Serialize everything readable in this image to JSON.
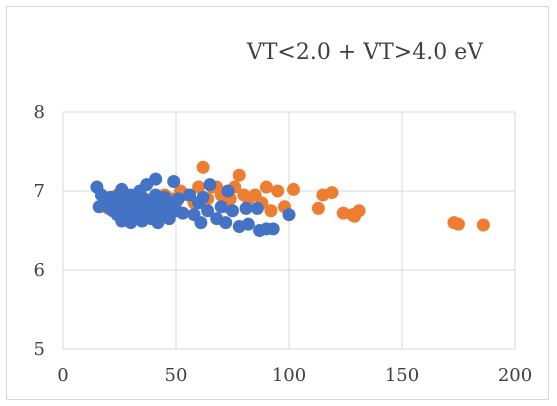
{
  "chart_data": {
    "type": "scatter",
    "title": "VT<2.0 + VT>4.0 eV",
    "xlim": [
      0,
      200
    ],
    "ylim": [
      5,
      8
    ],
    "x_ticks": [
      0,
      50,
      100,
      150,
      200
    ],
    "y_ticks": [
      5,
      6,
      7,
      8
    ],
    "grid": true,
    "legend": "none",
    "series": [
      {
        "color": "#ED7D31",
        "points": [
          [
            18,
            6.85
          ],
          [
            20,
            6.78
          ],
          [
            22,
            6.9
          ],
          [
            24,
            6.95
          ],
          [
            26,
            6.8
          ],
          [
            28,
            6.7
          ],
          [
            30,
            6.88
          ],
          [
            32,
            6.75
          ],
          [
            35,
            6.92
          ],
          [
            38,
            6.85
          ],
          [
            42,
            6.8
          ],
          [
            45,
            6.95
          ],
          [
            48,
            6.9
          ],
          [
            50,
            6.85
          ],
          [
            52,
            7.0
          ],
          [
            55,
            6.95
          ],
          [
            58,
            6.85
          ],
          [
            60,
            7.05
          ],
          [
            62,
            7.3
          ],
          [
            64,
            6.9
          ],
          [
            66,
            7.05
          ],
          [
            68,
            7.05
          ],
          [
            70,
            6.95
          ],
          [
            72,
            6.8
          ],
          [
            74,
            6.9
          ],
          [
            76,
            7.05
          ],
          [
            78,
            7.2
          ],
          [
            80,
            6.95
          ],
          [
            82,
            6.9
          ],
          [
            85,
            6.95
          ],
          [
            88,
            6.85
          ],
          [
            90,
            7.05
          ],
          [
            92,
            6.75
          ],
          [
            95,
            7.0
          ],
          [
            98,
            6.8
          ],
          [
            102,
            7.02
          ],
          [
            113,
            6.78
          ],
          [
            115,
            6.95
          ],
          [
            119,
            6.98
          ],
          [
            124,
            6.72
          ],
          [
            128,
            6.7
          ],
          [
            129,
            6.68
          ],
          [
            131,
            6.75
          ],
          [
            173,
            6.6
          ],
          [
            175,
            6.58
          ],
          [
            186,
            6.57
          ]
        ]
      },
      {
        "color": "#4472C4",
        "points": [
          [
            15,
            7.05
          ],
          [
            16,
            6.8
          ],
          [
            17,
            6.95
          ],
          [
            19,
            6.88
          ],
          [
            20,
            6.8
          ],
          [
            21,
            6.92
          ],
          [
            22,
            6.75
          ],
          [
            23,
            6.85
          ],
          [
            24,
            6.7
          ],
          [
            25,
            6.95
          ],
          [
            26,
            7.02
          ],
          [
            26,
            6.62
          ],
          [
            27,
            6.8
          ],
          [
            28,
            6.7
          ],
          [
            29,
            6.9
          ],
          [
            30,
            6.6
          ],
          [
            30,
            6.95
          ],
          [
            31,
            6.75
          ],
          [
            32,
            6.85
          ],
          [
            33,
            6.68
          ],
          [
            34,
            7.0
          ],
          [
            35,
            6.8
          ],
          [
            35,
            6.62
          ],
          [
            36,
            6.9
          ],
          [
            37,
            7.08
          ],
          [
            38,
            6.72
          ],
          [
            38,
            6.88
          ],
          [
            39,
            6.65
          ],
          [
            40,
            6.78
          ],
          [
            41,
            6.95
          ],
          [
            41,
            7.15
          ],
          [
            42,
            6.6
          ],
          [
            43,
            6.85
          ],
          [
            44,
            6.7
          ],
          [
            45,
            6.92
          ],
          [
            46,
            6.78
          ],
          [
            47,
            6.65
          ],
          [
            48,
            6.85
          ],
          [
            49,
            7.12
          ],
          [
            50,
            6.75
          ],
          [
            51,
            6.9
          ],
          [
            53,
            6.72
          ],
          [
            56,
            6.95
          ],
          [
            58,
            6.7
          ],
          [
            60,
            6.85
          ],
          [
            61,
            6.6
          ],
          [
            62,
            6.92
          ],
          [
            64,
            6.75
          ],
          [
            65,
            7.08
          ],
          [
            68,
            6.65
          ],
          [
            70,
            6.8
          ],
          [
            72,
            6.6
          ],
          [
            73,
            7.0
          ],
          [
            75,
            6.75
          ],
          [
            78,
            6.55
          ],
          [
            81,
            6.78
          ],
          [
            82,
            6.58
          ],
          [
            86,
            6.78
          ],
          [
            87,
            6.5
          ],
          [
            90,
            6.52
          ],
          [
            93,
            6.52
          ],
          [
            100,
            6.7
          ]
        ]
      }
    ]
  }
}
